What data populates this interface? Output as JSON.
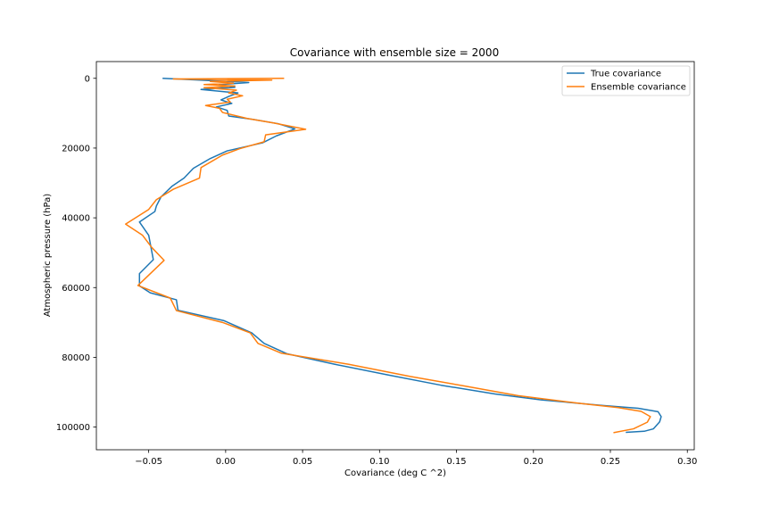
{
  "chart_data": {
    "type": "line",
    "title": "Covariance with ensemble size = 2000",
    "xlabel": "Covariance (deg C ^2)",
    "ylabel": "Atmospheric pressure (hPa)",
    "xlim": [
      -0.084,
      0.3045
    ],
    "ylim": [
      106500,
      -4800
    ],
    "y_inverted": true,
    "grid": false,
    "legend_position": "top-right",
    "xticks": [
      -0.05,
      0.0,
      0.05,
      0.1,
      0.15,
      0.2,
      0.25,
      0.3
    ],
    "xtick_labels": [
      "−0.05",
      "0.00",
      "0.05",
      "0.10",
      "0.15",
      "0.20",
      "0.25",
      "0.30"
    ],
    "yticks": [
      0,
      20000,
      40000,
      60000,
      80000,
      100000
    ],
    "ytick_labels": [
      "0",
      "20000",
      "40000",
      "60000",
      "80000",
      "100000"
    ],
    "series": [
      {
        "name": "True covariance",
        "color": "#1f77b4",
        "points": [
          [
            -0.041,
            0
          ],
          [
            0.015,
            1200
          ],
          [
            -0.004,
            1800
          ],
          [
            0.006,
            2600
          ],
          [
            -0.016,
            3200
          ],
          [
            0.008,
            4200
          ],
          [
            0.002,
            5200
          ],
          [
            -0.003,
            6200
          ],
          [
            0.004,
            7200
          ],
          [
            -0.006,
            8200
          ],
          [
            0.001,
            9200
          ],
          [
            0.002,
            10800
          ],
          [
            0.018,
            11800
          ],
          [
            0.034,
            13000
          ],
          [
            0.045,
            14500
          ],
          [
            0.033,
            16500
          ],
          [
            0.024,
            18500
          ],
          [
            0.001,
            20800
          ],
          [
            -0.01,
            23000
          ],
          [
            -0.021,
            25800
          ],
          [
            -0.027,
            28600
          ],
          [
            -0.035,
            31000
          ],
          [
            -0.042,
            34000
          ],
          [
            -0.045,
            36600
          ],
          [
            -0.046,
            38200
          ],
          [
            -0.056,
            41200
          ],
          [
            -0.05,
            45000
          ],
          [
            -0.047,
            52000
          ],
          [
            -0.056,
            56000
          ],
          [
            -0.056,
            59500
          ],
          [
            -0.049,
            61500
          ],
          [
            -0.032,
            63500
          ],
          [
            -0.031,
            66500
          ],
          [
            -0.001,
            69500
          ],
          [
            0.017,
            73000
          ],
          [
            0.025,
            76000
          ],
          [
            0.04,
            79000
          ],
          [
            0.071,
            82000
          ],
          [
            0.105,
            85000
          ],
          [
            0.14,
            88000
          ],
          [
            0.175,
            90500
          ],
          [
            0.205,
            92200
          ],
          [
            0.245,
            93800
          ],
          [
            0.268,
            94600
          ],
          [
            0.281,
            95600
          ],
          [
            0.283,
            97000
          ],
          [
            0.282,
            98500
          ],
          [
            0.278,
            100500
          ],
          [
            0.272,
            101200
          ],
          [
            0.26,
            101500
          ]
        ]
      },
      {
        "name": "Ensemble covariance",
        "color": "#ff7f0e",
        "points": [
          [
            0.038,
            0
          ],
          [
            -0.034,
            200
          ],
          [
            0.03,
            500
          ],
          [
            -0.01,
            900
          ],
          [
            0.005,
            1400
          ],
          [
            -0.014,
            1800
          ],
          [
            0.006,
            2200
          ],
          [
            -0.014,
            2700
          ],
          [
            0.007,
            3400
          ],
          [
            0.002,
            4200
          ],
          [
            0.011,
            5000
          ],
          [
            0.001,
            6000
          ],
          [
            0.003,
            6800
          ],
          [
            -0.013,
            7800
          ],
          [
            -0.004,
            8600
          ],
          [
            -0.002,
            9800
          ],
          [
            0.014,
            11500
          ],
          [
            0.031,
            12800
          ],
          [
            0.045,
            14000
          ],
          [
            0.052,
            14600
          ],
          [
            0.026,
            16200
          ],
          [
            0.025,
            18200
          ],
          [
            0.009,
            20200
          ],
          [
            -0.002,
            22000
          ],
          [
            -0.016,
            25600
          ],
          [
            -0.017,
            28600
          ],
          [
            -0.034,
            31800
          ],
          [
            -0.045,
            34800
          ],
          [
            -0.05,
            37600
          ],
          [
            -0.065,
            41800
          ],
          [
            -0.054,
            45000
          ],
          [
            -0.048,
            48500
          ],
          [
            -0.04,
            52200
          ],
          [
            -0.057,
            59400
          ],
          [
            -0.036,
            63000
          ],
          [
            -0.032,
            66600
          ],
          [
            -0.002,
            70000
          ],
          [
            0.016,
            73000
          ],
          [
            0.021,
            76000
          ],
          [
            0.036,
            78800
          ],
          [
            0.08,
            82000
          ],
          [
            0.12,
            85500
          ],
          [
            0.155,
            88200
          ],
          [
            0.19,
            91000
          ],
          [
            0.23,
            93200
          ],
          [
            0.255,
            94400
          ],
          [
            0.27,
            95500
          ],
          [
            0.276,
            97000
          ],
          [
            0.274,
            98600
          ],
          [
            0.265,
            100500
          ],
          [
            0.252,
            101600
          ]
        ]
      }
    ]
  }
}
